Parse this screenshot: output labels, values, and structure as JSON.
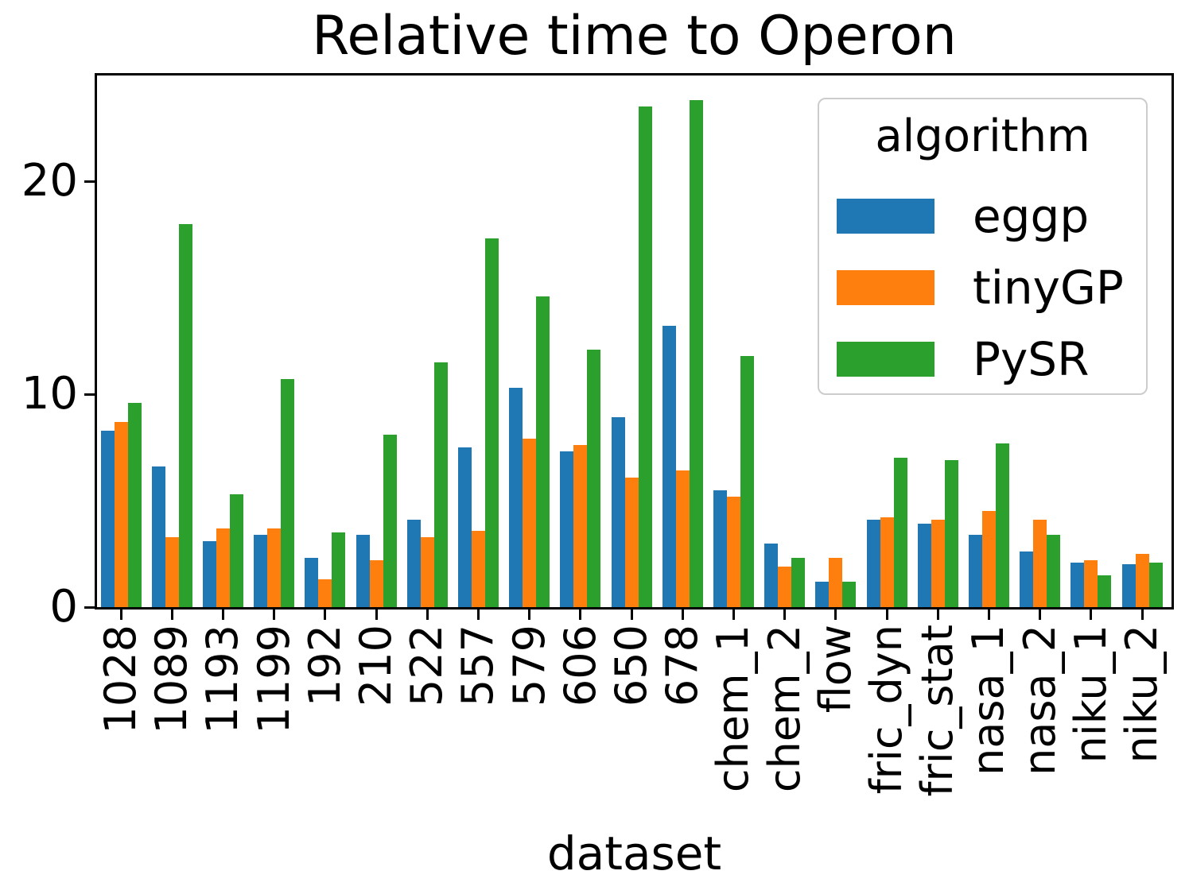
{
  "chart_data": {
    "type": "bar",
    "title": "Relative time to Operon",
    "xlabel": "dataset",
    "ylabel": "",
    "categories": [
      "1028",
      "1089",
      "1193",
      "1199",
      "192",
      "210",
      "522",
      "557",
      "579",
      "606",
      "650",
      "678",
      "chem_1",
      "chem_2",
      "flow",
      "fric_dyn",
      "fric_stat",
      "nasa_1",
      "nasa_2",
      "niku_1",
      "niku_2"
    ],
    "series": [
      {
        "name": "eggp",
        "color": "#1f77b4",
        "values": [
          8.3,
          6.6,
          3.1,
          3.4,
          2.3,
          3.4,
          4.1,
          7.5,
          10.3,
          7.3,
          8.9,
          13.2,
          5.5,
          3.0,
          1.2,
          4.1,
          3.9,
          3.4,
          2.6,
          2.1,
          2.0
        ]
      },
      {
        "name": "tinyGP",
        "color": "#ff7f0e",
        "values": [
          8.7,
          3.3,
          3.7,
          3.7,
          1.3,
          2.2,
          3.3,
          3.6,
          7.9,
          7.6,
          6.1,
          6.4,
          5.2,
          1.9,
          2.3,
          4.2,
          4.1,
          4.5,
          4.1,
          2.2,
          2.5
        ]
      },
      {
        "name": "PySR",
        "color": "#2ca02c",
        "values": [
          9.6,
          18.0,
          5.3,
          10.7,
          3.5,
          8.1,
          11.5,
          17.3,
          14.6,
          12.1,
          23.5,
          23.8,
          11.8,
          2.3,
          1.2,
          7.0,
          6.9,
          7.7,
          3.4,
          1.5,
          2.1
        ]
      }
    ],
    "yticks": [
      0,
      10,
      20
    ],
    "yticklabels": [
      "0",
      "10",
      "20"
    ],
    "ylim": [
      0,
      25.1
    ],
    "grid": false,
    "legend": {
      "title": "algorithm",
      "position": "upper right"
    }
  }
}
